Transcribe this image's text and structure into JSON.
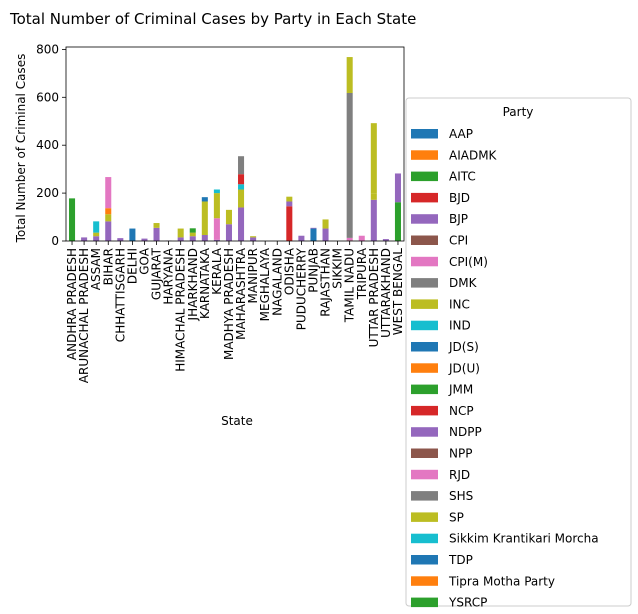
{
  "chart_data": {
    "type": "bar",
    "stacked": true,
    "title": "Total Number of Criminal Cases by Party in Each State",
    "xlabel": "State",
    "ylabel": "Total Number of Criminal Cases",
    "ylim": [
      0,
      810
    ],
    "yticks": [
      0,
      200,
      400,
      600,
      800
    ],
    "grid": false,
    "legend": {
      "title": "Party",
      "placement": "outside-right"
    },
    "categories": [
      "ANDHRA PRADESH",
      "ARUNACHAL PRADESH",
      "ASSAM",
      "BIHAR",
      "CHHATTISGARH",
      "DELHI",
      "GOA",
      "GUJARAT",
      "HARYANA",
      "HIMACHAL PRADESH",
      "JHARKHAND",
      "KARNATAKA",
      "KERALA",
      "MADHYA PRADESH",
      "MAHARASHTRA",
      "MANIPUR",
      "MEGHALAYA",
      "NAGALAND",
      "ODISHA",
      "PUDUCHERRY",
      "PUNJAB",
      "RAJASTHAN",
      "SIKKIM",
      "TAMIL NADU",
      "TRIPURA",
      "UTTAR PRADESH",
      "UTTARAKHAND",
      "WEST BENGAL"
    ],
    "series": [
      {
        "name": "AAP",
        "color": "#1f77b4",
        "values": [
          0,
          0,
          0,
          0,
          0,
          52,
          0,
          0,
          0,
          0,
          0,
          0,
          0,
          0,
          0,
          0,
          0,
          0,
          0,
          0,
          52,
          0,
          0,
          0,
          0,
          0,
          0,
          0
        ]
      },
      {
        "name": "AIADMK",
        "color": "#ff7f0e",
        "values": [
          0,
          0,
          0,
          0,
          0,
          0,
          0,
          0,
          0,
          0,
          0,
          0,
          0,
          0,
          0,
          0,
          0,
          0,
          0,
          0,
          0,
          0,
          0,
          0,
          0,
          0,
          0,
          0
        ]
      },
      {
        "name": "AITC",
        "color": "#2ca02c",
        "values": [
          0,
          0,
          0,
          0,
          0,
          0,
          0,
          0,
          0,
          0,
          0,
          0,
          0,
          0,
          0,
          0,
          0,
          0,
          0,
          0,
          0,
          0,
          0,
          0,
          0,
          0,
          0,
          162
        ]
      },
      {
        "name": "BJD",
        "color": "#d62728",
        "values": [
          0,
          0,
          0,
          0,
          0,
          0,
          0,
          0,
          0,
          0,
          0,
          0,
          0,
          0,
          0,
          0,
          0,
          0,
          145,
          0,
          0,
          0,
          0,
          0,
          0,
          0,
          0,
          0
        ]
      },
      {
        "name": "BJP",
        "color": "#9467bd",
        "values": [
          0,
          15,
          20,
          82,
          12,
          0,
          10,
          55,
          2,
          15,
          20,
          25,
          5,
          70,
          140,
          15,
          0,
          0,
          20,
          22,
          3,
          52,
          0,
          0,
          0,
          172,
          8,
          120
        ]
      },
      {
        "name": "CPI",
        "color": "#8c564b",
        "values": [
          0,
          0,
          0,
          0,
          0,
          0,
          0,
          0,
          0,
          0,
          0,
          0,
          0,
          0,
          0,
          0,
          0,
          0,
          0,
          0,
          0,
          0,
          0,
          3,
          0,
          0,
          0,
          0
        ]
      },
      {
        "name": "CPI(M)",
        "color": "#e377c2",
        "values": [
          0,
          0,
          0,
          0,
          0,
          0,
          0,
          0,
          0,
          0,
          0,
          0,
          90,
          0,
          0,
          0,
          0,
          0,
          0,
          0,
          0,
          0,
          0,
          10,
          22,
          0,
          0,
          0
        ]
      },
      {
        "name": "DMK",
        "color": "#7f7f7f",
        "values": [
          0,
          0,
          0,
          0,
          0,
          0,
          0,
          0,
          0,
          0,
          0,
          0,
          0,
          0,
          0,
          0,
          0,
          0,
          0,
          0,
          0,
          0,
          0,
          605,
          0,
          0,
          0,
          0
        ]
      },
      {
        "name": "INC",
        "color": "#bcbd22",
        "values": [
          0,
          0,
          15,
          30,
          0,
          0,
          0,
          20,
          0,
          37,
          15,
          140,
          105,
          60,
          75,
          5,
          0,
          0,
          20,
          0,
          0,
          38,
          0,
          150,
          0,
          25,
          0,
          0
        ]
      },
      {
        "name": "IND",
        "color": "#17becf",
        "values": [
          0,
          0,
          47,
          0,
          0,
          0,
          0,
          0,
          0,
          0,
          0,
          0,
          15,
          0,
          22,
          0,
          0,
          0,
          0,
          0,
          0,
          0,
          0,
          0,
          0,
          0,
          0,
          0
        ]
      },
      {
        "name": "JD(S)",
        "color": "#1f77b4",
        "values": [
          0,
          0,
          0,
          0,
          0,
          0,
          0,
          0,
          0,
          0,
          0,
          18,
          0,
          0,
          0,
          0,
          0,
          0,
          0,
          0,
          0,
          0,
          0,
          0,
          0,
          0,
          0,
          0
        ]
      },
      {
        "name": "JD(U)",
        "color": "#ff7f0e",
        "values": [
          0,
          0,
          0,
          25,
          0,
          0,
          0,
          0,
          0,
          0,
          0,
          0,
          0,
          0,
          0,
          0,
          0,
          0,
          0,
          0,
          0,
          0,
          0,
          0,
          0,
          0,
          0,
          0
        ]
      },
      {
        "name": "JMM",
        "color": "#2ca02c",
        "values": [
          0,
          0,
          0,
          0,
          0,
          0,
          0,
          0,
          0,
          0,
          18,
          0,
          0,
          0,
          0,
          0,
          0,
          0,
          0,
          0,
          0,
          0,
          0,
          0,
          0,
          0,
          0,
          0
        ]
      },
      {
        "name": "NCP",
        "color": "#d62728",
        "values": [
          0,
          0,
          0,
          0,
          0,
          0,
          0,
          0,
          0,
          0,
          0,
          0,
          0,
          0,
          42,
          0,
          0,
          0,
          0,
          0,
          0,
          0,
          0,
          0,
          0,
          0,
          0,
          0
        ]
      },
      {
        "name": "NDPP",
        "color": "#9467bd",
        "values": [
          0,
          0,
          0,
          0,
          0,
          0,
          0,
          0,
          0,
          0,
          0,
          0,
          0,
          0,
          0,
          0,
          0,
          0,
          0,
          0,
          0,
          0,
          0,
          0,
          0,
          0,
          0,
          0
        ]
      },
      {
        "name": "NPP",
        "color": "#8c564b",
        "values": [
          0,
          0,
          0,
          0,
          0,
          0,
          0,
          0,
          0,
          0,
          0,
          0,
          0,
          0,
          0,
          0,
          0,
          0,
          0,
          0,
          0,
          0,
          0,
          0,
          0,
          0,
          0,
          0
        ]
      },
      {
        "name": "RJD",
        "color": "#e377c2",
        "values": [
          0,
          0,
          0,
          130,
          0,
          0,
          0,
          0,
          0,
          0,
          0,
          0,
          0,
          0,
          0,
          0,
          0,
          0,
          0,
          0,
          0,
          0,
          0,
          0,
          0,
          0,
          0,
          0
        ]
      },
      {
        "name": "SHS",
        "color": "#7f7f7f",
        "values": [
          0,
          0,
          0,
          0,
          0,
          0,
          0,
          0,
          0,
          0,
          0,
          0,
          0,
          0,
          75,
          0,
          0,
          0,
          0,
          0,
          0,
          0,
          0,
          0,
          0,
          0,
          0,
          0
        ]
      },
      {
        "name": "SP",
        "color": "#bcbd22",
        "values": [
          0,
          0,
          0,
          0,
          0,
          0,
          0,
          0,
          0,
          0,
          0,
          0,
          0,
          0,
          0,
          0,
          0,
          0,
          0,
          0,
          0,
          0,
          0,
          0,
          0,
          295,
          0,
          0
        ]
      },
      {
        "name": "Sikkim Krantikari Morcha",
        "color": "#17becf",
        "values": [
          0,
          0,
          0,
          0,
          0,
          0,
          0,
          0,
          0,
          0,
          0,
          0,
          0,
          0,
          0,
          0,
          0,
          0,
          0,
          0,
          0,
          0,
          0,
          0,
          0,
          0,
          0,
          0
        ]
      },
      {
        "name": "TDP",
        "color": "#1f77b4",
        "values": [
          0,
          0,
          0,
          0,
          0,
          0,
          0,
          0,
          0,
          0,
          0,
          0,
          0,
          0,
          0,
          0,
          0,
          0,
          0,
          0,
          0,
          0,
          0,
          0,
          0,
          0,
          0,
          0
        ]
      },
      {
        "name": "Tipra Motha Party",
        "color": "#ff7f0e",
        "values": [
          0,
          0,
          0,
          0,
          0,
          0,
          0,
          0,
          0,
          0,
          0,
          0,
          0,
          0,
          0,
          0,
          0,
          0,
          0,
          0,
          0,
          0,
          0,
          0,
          0,
          0,
          0,
          0
        ]
      },
      {
        "name": "YSRCP",
        "color": "#2ca02c",
        "values": [
          178,
          0,
          0,
          0,
          0,
          0,
          0,
          0,
          0,
          0,
          0,
          0,
          0,
          0,
          0,
          0,
          0,
          0,
          0,
          0,
          0,
          0,
          0,
          0,
          0,
          0,
          0,
          0
        ]
      }
    ]
  }
}
